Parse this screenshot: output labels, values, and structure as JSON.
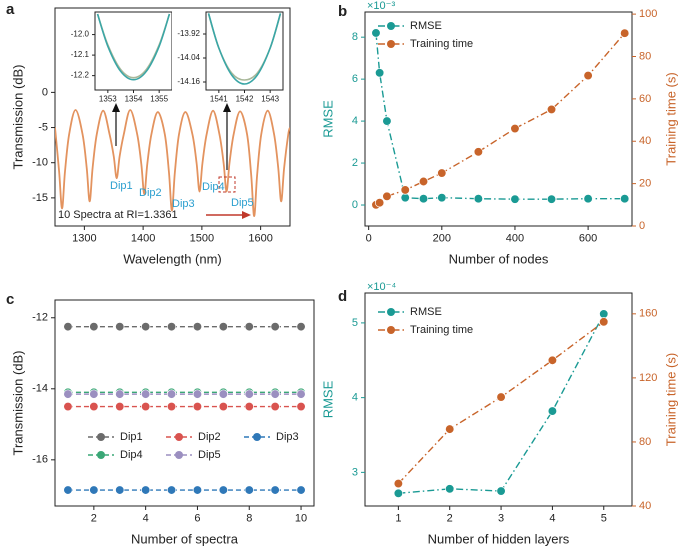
{
  "chart_data": [
    {
      "type": "line",
      "panel_label": "a",
      "x_label": "Wavelength (nm)",
      "y_label": "Transmission (dB)",
      "note": "10 Spectra at RI=1.3361",
      "annotations": [
        "Dip1",
        "Dip2",
        "Dip3",
        "Dip4",
        "Dip5"
      ],
      "xlim": [
        1250,
        1650
      ],
      "xticks": [
        1300,
        1400,
        1500,
        1600
      ],
      "ylim": [
        -19,
        12
      ],
      "yticks": [
        -15,
        -10,
        -5,
        0
      ],
      "smooth": true,
      "x": [
        1250,
        1257,
        1262,
        1267,
        1274,
        1285,
        1297,
        1304,
        1309,
        1314,
        1321,
        1332,
        1343,
        1350,
        1355,
        1360,
        1367,
        1378,
        1390,
        1397,
        1402,
        1407,
        1414,
        1425,
        1437,
        1444,
        1449,
        1454,
        1461,
        1472,
        1484,
        1491,
        1496,
        1501,
        1508,
        1519,
        1530,
        1537,
        1542,
        1547,
        1554,
        1565,
        1577,
        1584,
        1589,
        1594,
        1601,
        1612,
        1623,
        1630,
        1635,
        1640,
        1647,
        1650
      ],
      "series": [
        {
          "color": "#e3935f",
          "values": [
            -5,
            -11.25,
            -16.5,
            -11.25,
            -6,
            -2.5,
            -6,
            -10.75,
            -15.5,
            -10.75,
            -6,
            -2.6,
            -6,
            -9.1,
            -12.2,
            -9.1,
            -6,
            -2.5,
            -6,
            -10.25,
            -14.5,
            -10.25,
            -6,
            -2.8,
            -6,
            -11.4,
            -16.8,
            -11.4,
            -6,
            -2.8,
            -6,
            -10.05,
            -14.1,
            -10.05,
            -6,
            -2.6,
            -6,
            -10.05,
            -14.1,
            -10.05,
            -6,
            -2.7,
            -6,
            -11.8,
            -17.6,
            -11.8,
            -6,
            -2.6,
            -6,
            -10.75,
            -15.5,
            -10.75,
            -6,
            -5
          ]
        }
      ]
    },
    {
      "type": "line",
      "xlim": [
        1352.5,
        1355.5
      ],
      "xticks": [
        1353,
        1354,
        1355
      ],
      "ylim": [
        -12.27,
        -11.89
      ],
      "yticks": [
        {
          "value": -12,
          "label": "-12.0"
        },
        -12.1,
        -12.2
      ],
      "smooth": true,
      "x": [
        1352.6,
        1353,
        1353.5,
        1354,
        1354.5,
        1355,
        1355.4
      ],
      "series": [
        {
          "color": "#a9b89a",
          "values": [
            -11.9,
            -12.05,
            -12.17,
            -12.21,
            -12.17,
            -12.05,
            -11.9
          ]
        },
        {
          "color": "#3aa6a6",
          "values": [
            -11.9,
            -12.057,
            -12.179,
            -12.22,
            -12.179,
            -12.057,
            -11.9
          ]
        }
      ]
    },
    {
      "type": "line",
      "xlim": [
        1540.5,
        1543.5
      ],
      "xticks": [
        1541,
        1542,
        1543
      ],
      "ylim": [
        -14.2,
        -13.81
      ],
      "yticks": [
        -13.92,
        -14.04,
        -14.16
      ],
      "smooth": true,
      "x": [
        1540.6,
        1541,
        1541.5,
        1542,
        1542.5,
        1543,
        1543.4
      ],
      "series": [
        {
          "color": "#a9b89a",
          "values": [
            -13.82,
            -13.99,
            -14.115,
            -14.15,
            -14.115,
            -13.99,
            -13.82
          ]
        },
        {
          "color": "#3aa6a6",
          "values": [
            -13.817,
            -13.99,
            -14.125,
            -14.17,
            -14.125,
            -13.99,
            -13.817
          ]
        }
      ]
    },
    {
      "type": "line",
      "panel_label": "b",
      "x_label": "Number of nodes",
      "y_label": "RMSE",
      "y2_label": "Training time (s)",
      "y_multiplier": "×10⁻³",
      "legend": "upper right",
      "line_style": "dashdot",
      "markers": true,
      "xlim": [
        -10,
        720
      ],
      "xticks": [
        0,
        200,
        400,
        600
      ],
      "ylim": [
        -1,
        9.2
      ],
      "yticks": [
        0,
        2,
        4,
        6,
        8
      ],
      "y2lim": [
        0,
        101
      ],
      "y2ticks": [
        0,
        20,
        40,
        60,
        80,
        100
      ],
      "x": [
        20,
        30,
        50,
        100,
        150,
        200,
        300,
        400,
        500,
        600,
        700
      ],
      "series": [
        {
          "name": "RMSE",
          "color": "#1a9a94",
          "values": [
            8.2,
            6.3,
            4.0,
            0.35,
            0.3,
            0.35,
            0.3,
            0.28,
            0.28,
            0.3,
            0.3
          ]
        },
        {
          "name": "Training time",
          "color": "#c8642a",
          "axis": "y2",
          "values": [
            10,
            11,
            14,
            17,
            21,
            25,
            35,
            46,
            55,
            71,
            91
          ]
        }
      ]
    },
    {
      "type": "line",
      "panel_label": "c",
      "x_label": "Number of spectra",
      "y_label": "Transmission (dB)",
      "legend": "lower center",
      "line_style": "dashed",
      "markers": true,
      "xlim": [
        0.5,
        10.5
      ],
      "xticks": [
        2,
        4,
        6,
        8,
        10
      ],
      "ylim": [
        -17.3,
        -11.5
      ],
      "yticks": [
        -12,
        -14,
        -16
      ],
      "x": [
        1,
        2,
        3,
        4,
        5,
        6,
        7,
        8,
        9,
        10
      ],
      "series": [
        {
          "name": "Dip1",
          "color": "#6b6b6b",
          "values": [
            -12.25,
            -12.25,
            -12.25,
            -12.25,
            -12.25,
            -12.25,
            -12.25,
            -12.25,
            -12.25,
            -12.25
          ]
        },
        {
          "name": "Dip2",
          "color": "#d9534f",
          "values": [
            -14.5,
            -14.5,
            -14.5,
            -14.5,
            -14.5,
            -14.5,
            -14.5,
            -14.5,
            -14.5,
            -14.5
          ]
        },
        {
          "name": "Dip3",
          "color": "#2f78b8",
          "values": [
            -16.85,
            -16.85,
            -16.85,
            -16.85,
            -16.85,
            -16.85,
            -16.85,
            -16.85,
            -16.85,
            -16.85
          ]
        },
        {
          "name": "Dip4",
          "color": "#3aa776",
          "values": [
            -14.1,
            -14.1,
            -14.1,
            -14.1,
            -14.1,
            -14.1,
            -14.1,
            -14.1,
            -14.1,
            -14.1
          ]
        },
        {
          "name": "Dip5",
          "color": "#9b8fc0",
          "values": [
            -14.15,
            -14.15,
            -14.15,
            -14.15,
            -14.15,
            -14.15,
            -14.15,
            -14.15,
            -14.15,
            -14.15
          ]
        }
      ]
    },
    {
      "type": "line",
      "panel_label": "d",
      "x_label": "Number of hidden layers",
      "y_label": "RMSE",
      "y2_label": "Training time (s)",
      "y_multiplier": "×10⁻⁴",
      "legend": "upper left",
      "line_style": "dashdot",
      "markers": true,
      "xlim": [
        0.35,
        5.55
      ],
      "xticks": [
        1,
        2,
        3,
        4,
        5
      ],
      "ylim": [
        2.55,
        5.4
      ],
      "yticks": [
        3,
        4,
        5
      ],
      "y2lim": [
        40,
        173
      ],
      "y2ticks": [
        40,
        80,
        120,
        160
      ],
      "x": [
        1,
        2,
        3,
        4,
        5
      ],
      "series": [
        {
          "name": "RMSE",
          "color": "#1a9a94",
          "values": [
            2.72,
            2.78,
            2.75,
            3.82,
            5.12
          ]
        },
        {
          "name": "Training time",
          "color": "#c8642a",
          "axis": "y2",
          "values": [
            54,
            88,
            108,
            131,
            155
          ]
        }
      ]
    }
  ]
}
